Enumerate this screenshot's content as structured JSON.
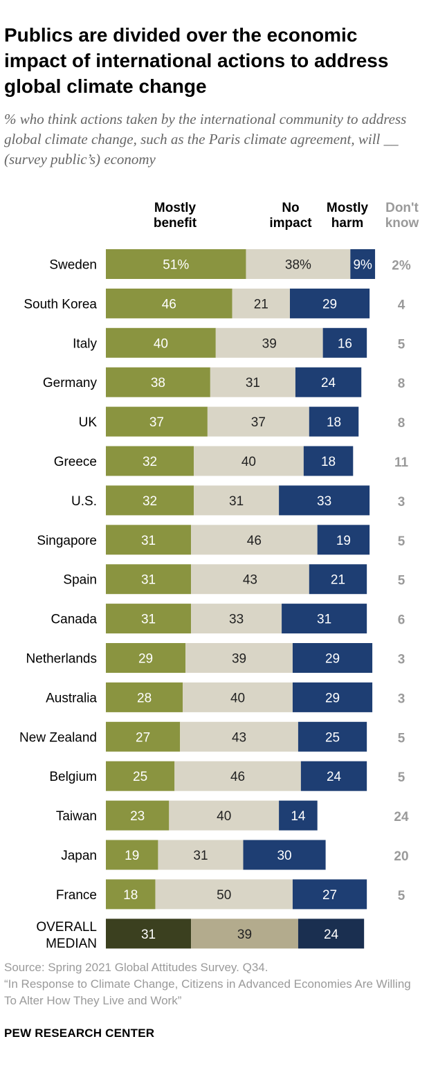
{
  "title": "Publics are divided over the economic impact of international actions to address global climate change",
  "subtitle": "% who think actions taken by the international community to address global climate change, such as the Paris climate agreement, will __ (survey public’s) economy",
  "source": "Source: Spring 2021 Global Attitudes Survey. Q34.\n“In Response to Climate Change, Citizens in Advanced Economies Are Willing To Alter How They Live and Work”",
  "org": "PEW RESEARCH CENTER",
  "colors": {
    "benefit": "#8a9440",
    "no_impact": "#d9d5c6",
    "harm": "#1e3e73",
    "dont_know": "#9a9a9a",
    "median_benefit": "#3b401f",
    "median_no_impact": "#b3ab8d",
    "median_harm": "#1a2f50"
  },
  "chart_data": {
    "type": "bar",
    "orientation": "horizontal",
    "stacked": true,
    "title": "Publics are divided over the economic impact of international actions to address global climate change",
    "columns": [
      "Mostly\nbenefit",
      "No\nimpact",
      "Mostly\nharm",
      "Don't\nknow"
    ],
    "categories": [
      "Sweden",
      "South Korea",
      "Italy",
      "Germany",
      "UK",
      "Greece",
      "U.S.",
      "Singapore",
      "Spain",
      "Canada",
      "Netherlands",
      "Australia",
      "New Zealand",
      "Belgium",
      "Taiwan",
      "Japan",
      "France",
      "OVERALL\nMEDIAN"
    ],
    "first_row_labels": [
      "51%",
      "38%",
      "9%",
      "2%"
    ],
    "series": [
      {
        "name": "Mostly benefit",
        "values": [
          51,
          46,
          40,
          38,
          37,
          32,
          32,
          31,
          31,
          31,
          29,
          28,
          27,
          25,
          23,
          19,
          18,
          31
        ]
      },
      {
        "name": "No impact",
        "values": [
          38,
          21,
          39,
          31,
          37,
          40,
          31,
          46,
          43,
          33,
          39,
          40,
          43,
          46,
          40,
          31,
          50,
          39
        ]
      },
      {
        "name": "Mostly harm",
        "values": [
          9,
          29,
          16,
          24,
          18,
          18,
          33,
          19,
          21,
          31,
          29,
          29,
          25,
          24,
          14,
          30,
          27,
          24
        ]
      },
      {
        "name": "Don't know",
        "values": [
          2,
          4,
          5,
          8,
          8,
          11,
          3,
          5,
          5,
          6,
          3,
          3,
          5,
          5,
          24,
          20,
          5,
          null
        ]
      }
    ]
  }
}
